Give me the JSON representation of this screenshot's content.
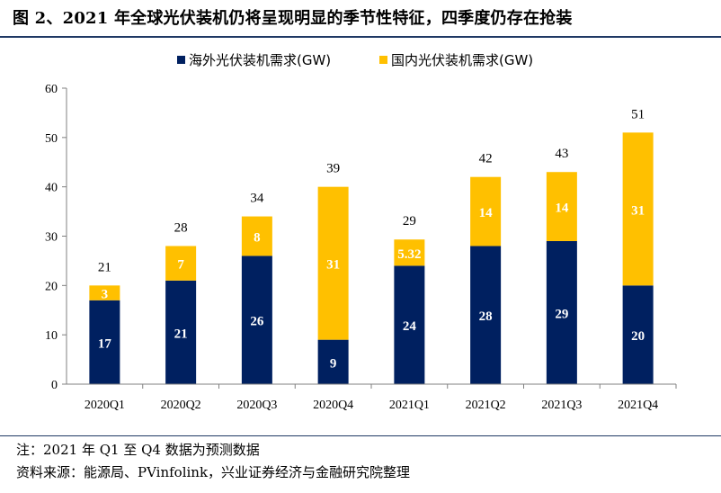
{
  "title": "图 2、2021 年全球光伏装机仍将呈现明显的季节性特征，四季度仍存在抢装",
  "notes": {
    "note": "注：2021 年 Q1 至 Q4 数据为预测数据",
    "source": "资料来源：能源局、PVinfolink，兴业证券经济与金融研究院整理"
  },
  "chart_data": {
    "type": "bar",
    "stacked": true,
    "categories": [
      "2020Q1",
      "2020Q2",
      "2020Q3",
      "2020Q4",
      "2021Q1",
      "2021Q2",
      "2021Q3",
      "2021Q4"
    ],
    "series": [
      {
        "name": "海外光伏装机需求(GW)",
        "values": [
          17,
          21,
          26,
          9,
          24,
          28,
          29,
          20
        ],
        "labels": [
          "17",
          "21",
          "26",
          "9",
          "24",
          "28",
          "29",
          "20"
        ],
        "color": "#002060"
      },
      {
        "name": "国内光伏装机需求(GW)",
        "values": [
          3,
          7,
          8,
          31,
          5.32,
          14,
          14,
          31
        ],
        "labels": [
          "3",
          "7",
          "8",
          "31",
          "5.32",
          "14",
          "14",
          "31"
        ],
        "color": "#FFC000"
      }
    ],
    "totals": [
      "21",
      "28",
      "34",
      "39",
      "29",
      "42",
      "43",
      "51"
    ],
    "ylim": [
      0,
      60
    ],
    "yticks": [
      "0",
      "10",
      "20",
      "30",
      "40",
      "50",
      "60"
    ],
    "legend_position": "top",
    "grid": false
  }
}
